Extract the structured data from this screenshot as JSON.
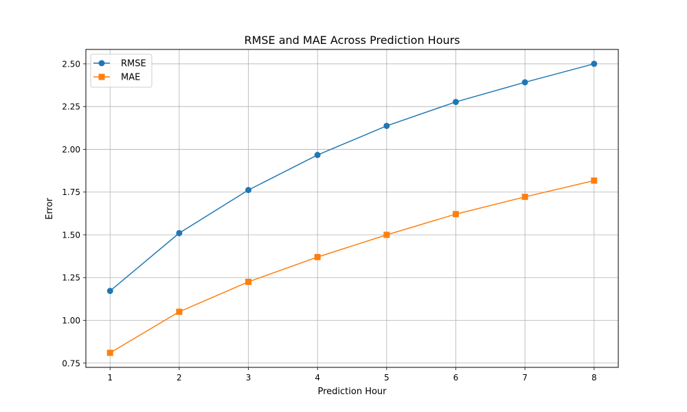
{
  "chart_data": {
    "type": "line",
    "title": "RMSE and MAE Across Prediction Hours",
    "xlabel": "Prediction Hour",
    "ylabel": "Error",
    "x": [
      1,
      2,
      3,
      4,
      5,
      6,
      7,
      8
    ],
    "xticks": [
      "1",
      "2",
      "3",
      "4",
      "5",
      "6",
      "7",
      "8"
    ],
    "yticks": [
      0.75,
      1.0,
      1.25,
      1.5,
      1.75,
      2.0,
      2.25,
      2.5
    ],
    "ytick_labels": [
      "0.75",
      "1.00",
      "1.25",
      "1.50",
      "1.75",
      "2.00",
      "2.25",
      "2.50"
    ],
    "xlim": [
      0.65,
      8.35
    ],
    "ylim": [
      0.725,
      2.584
    ],
    "grid": true,
    "legend_position": "upper-left",
    "series": [
      {
        "name": "RMSE",
        "color": "#1f77b4",
        "marker": "circle",
        "values": [
          1.172,
          1.51,
          1.762,
          1.967,
          2.137,
          2.277,
          2.392,
          2.5
        ]
      },
      {
        "name": "MAE",
        "color": "#ff7f0e",
        "marker": "square",
        "values": [
          0.81,
          1.05,
          1.225,
          1.37,
          1.5,
          1.621,
          1.722,
          1.817
        ]
      }
    ]
  }
}
